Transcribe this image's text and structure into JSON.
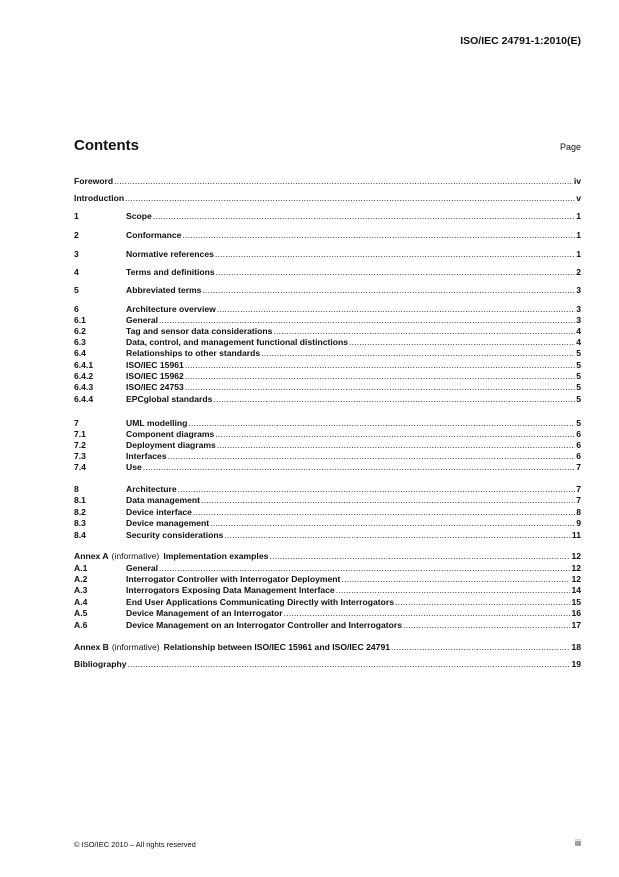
{
  "header": {
    "doc_id": "ISO/IEC 24791-1:2010(E)"
  },
  "contents": {
    "title": "Contents",
    "page_label": "Page"
  },
  "entries": [
    {
      "num": "",
      "title": "Foreword",
      "page": "iv"
    },
    {
      "num": "",
      "title": "Introduction",
      "page": "v"
    },
    {
      "num": "1",
      "title": "Scope",
      "page": "1"
    },
    {
      "num": "2",
      "title": "Conformance",
      "page": "1"
    },
    {
      "num": "3",
      "title": "Normative references",
      "page": "1"
    },
    {
      "num": "4",
      "title": "Terms and definitions",
      "page": "2"
    },
    {
      "num": "5",
      "title": "Abbreviated terms",
      "page": "3"
    },
    {
      "num": "6",
      "title": "Architecture overview",
      "page": "3"
    },
    {
      "num": "6.1",
      "title": "General",
      "page": "3"
    },
    {
      "num": "6.2",
      "title": "Tag and sensor data considerations",
      "page": "4"
    },
    {
      "num": "6.3",
      "title": "Data, control, and management functional distinctions",
      "page": "4"
    },
    {
      "num": "6.4",
      "title": "Relationships to other standards",
      "page": "5"
    },
    {
      "num": "6.4.1",
      "title": "ISO/IEC 15961",
      "page": "5"
    },
    {
      "num": "6.4.2",
      "title": "ISO/IEC 15962",
      "page": "5"
    },
    {
      "num": "6.4.3",
      "title": "ISO/IEC 24753",
      "page": "5"
    },
    {
      "num": "6.4.4",
      "title": "EPCglobal standards",
      "page": "5"
    },
    {
      "num": "7",
      "title": "UML modelling",
      "page": "5"
    },
    {
      "num": "7.1",
      "title": "Component diagrams",
      "page": "6"
    },
    {
      "num": "7.2",
      "title": "Deployment diagrams",
      "page": "6"
    },
    {
      "num": "7.3",
      "title": "Interfaces",
      "page": "6"
    },
    {
      "num": "7.4",
      "title": "Use",
      "page": "7"
    },
    {
      "num": "8",
      "title": "Architecture",
      "page": "7"
    },
    {
      "num": "8.1",
      "title": "Data management",
      "page": "7"
    },
    {
      "num": "8.2",
      "title": "Device interface",
      "page": "8"
    },
    {
      "num": "8.3",
      "title": "Device management",
      "page": "9"
    },
    {
      "num": "8.4",
      "title": "Security considerations",
      "page": "11"
    },
    {
      "annex": "Annex A",
      "note": "(informative)",
      "title": "Implementation examples",
      "page": "12"
    },
    {
      "num": "A.1",
      "title": "General",
      "page": "12"
    },
    {
      "num": "A.2",
      "title": "Interrogator Controller with Interrogator Deployment",
      "page": "12"
    },
    {
      "num": "A.3",
      "title": "Interrogators Exposing Data Management Interface",
      "page": "14"
    },
    {
      "num": "A.4",
      "title": "End User Applications Communicating Directly with Interrogators",
      "page": "15"
    },
    {
      "num": "A.5",
      "title": "Device Management of an Interrogator",
      "page": "16"
    },
    {
      "num": "A.6",
      "title": "Device Management on an Interrogator Controller and Interrogators",
      "page": "17"
    },
    {
      "annex": "Annex B",
      "note": "(informative)",
      "title": "Relationship between ISO/IEC 15961 and ISO/IEC 24791",
      "page": "18"
    },
    {
      "num": "",
      "title": "Bibliography",
      "page": "19"
    }
  ],
  "footer": {
    "copyright": "© ISO/IEC 2010 – All rights reserved",
    "page": "iii"
  }
}
